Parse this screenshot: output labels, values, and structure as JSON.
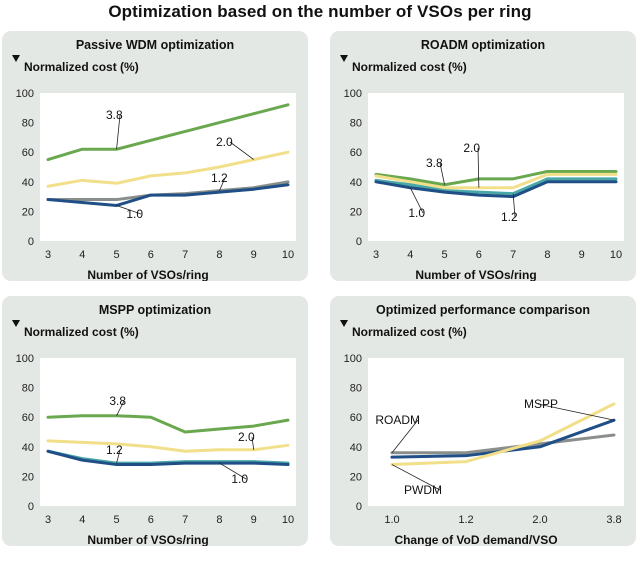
{
  "title": "Optimization based on the number of VSOs per ring",
  "colors": {
    "green": "#6aa84f",
    "yellow": "#f1df8a",
    "gray": "#8a8f8c",
    "blue": "#1f4f86",
    "teal": "#49a7a7",
    "panel_bg": "#e4e8e4",
    "plot_bg": "#ffffff"
  },
  "chart_data": [
    {
      "type": "line",
      "title": "Passive WDM optimization",
      "ylabel": "Normalized cost (%)",
      "xlabel": "Number of VSOs/ring",
      "x": [
        3,
        4,
        5,
        6,
        7,
        8,
        9,
        10
      ],
      "ylim": [
        0,
        100
      ],
      "yticks": [
        0,
        20,
        40,
        60,
        80,
        100
      ],
      "grid": false,
      "series": [
        {
          "name": "3.8",
          "color": "green",
          "values": [
            55,
            62,
            62,
            68,
            74,
            80,
            86,
            92
          ]
        },
        {
          "name": "2.0",
          "color": "yellow",
          "values": [
            37,
            41,
            39,
            44,
            46,
            50,
            55,
            60
          ]
        },
        {
          "name": "1.2",
          "color": "gray",
          "values": [
            28,
            28,
            28,
            31,
            32,
            34,
            36,
            40
          ]
        },
        {
          "name": "1.0",
          "color": "blue",
          "values": [
            28,
            26,
            24,
            31,
            31,
            33,
            35,
            38
          ]
        }
      ]
    },
    {
      "type": "line",
      "title": "ROADM optimization",
      "ylabel": "Normalized cost (%)",
      "xlabel": "Number of VSOs/ring",
      "x": [
        3,
        4,
        5,
        6,
        7,
        8,
        9,
        10
      ],
      "ylim": [
        0,
        100
      ],
      "yticks": [
        0,
        20,
        40,
        60,
        80,
        100
      ],
      "grid": false,
      "series": [
        {
          "name": "3.8",
          "color": "green",
          "values": [
            45,
            42,
            38,
            42,
            42,
            47,
            47,
            47
          ]
        },
        {
          "name": "2.0",
          "color": "yellow",
          "values": [
            44,
            40,
            36,
            36,
            36,
            45,
            45,
            45
          ]
        },
        {
          "name": "1.2",
          "color": "teal",
          "values": [
            41,
            38,
            34,
            33,
            32,
            42,
            42,
            42
          ]
        },
        {
          "name": "1.0",
          "color": "blue",
          "values": [
            40,
            36,
            33,
            31,
            30,
            40,
            40,
            40
          ]
        }
      ]
    },
    {
      "type": "line",
      "title": "MSPP optimization",
      "ylabel": "Normalized cost (%)",
      "xlabel": "Number of VSOs/ring",
      "x": [
        3,
        4,
        5,
        6,
        7,
        8,
        9,
        10
      ],
      "ylim": [
        0,
        100
      ],
      "yticks": [
        0,
        20,
        40,
        60,
        80,
        100
      ],
      "grid": false,
      "series": [
        {
          "name": "3.8",
          "color": "green",
          "values": [
            60,
            61,
            61,
            60,
            50,
            52,
            54,
            58
          ]
        },
        {
          "name": "2.0",
          "color": "yellow",
          "values": [
            44,
            43,
            42,
            40,
            37,
            38,
            38,
            41
          ]
        },
        {
          "name": "1.2",
          "color": "teal",
          "values": [
            37,
            32,
            29,
            29,
            30,
            30,
            30,
            29
          ]
        },
        {
          "name": "1.0",
          "color": "blue",
          "values": [
            37,
            31,
            28,
            28,
            29,
            29,
            29,
            28
          ]
        }
      ]
    },
    {
      "type": "line",
      "title": "Optimized performance comparison",
      "ylabel": "Normalized cost (%)",
      "xlabel": "Change of VoD demand/VSO",
      "categories": [
        "1.0",
        "1.2",
        "2.0",
        "3.8"
      ],
      "ylim": [
        0,
        100
      ],
      "yticks": [
        0,
        20,
        40,
        60,
        80,
        100
      ],
      "grid": false,
      "series": [
        {
          "name": "ROADM",
          "color": "gray",
          "values": [
            36,
            36,
            42,
            48
          ]
        },
        {
          "name": "MSPP",
          "color": "blue",
          "values": [
            33,
            34,
            40,
            58
          ]
        },
        {
          "name": "PWDM",
          "color": "yellow",
          "values": [
            28,
            30,
            44,
            69
          ]
        }
      ]
    }
  ]
}
